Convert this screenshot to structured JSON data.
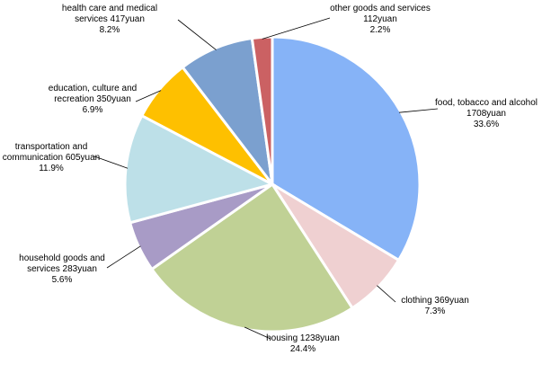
{
  "chart_data": {
    "type": "pie",
    "slices": [
      {
        "label": "food, tobacco and alcohol",
        "amount": "1708yuan",
        "value": 1708,
        "percent": "33.6%",
        "color": "#86b3f7"
      },
      {
        "label": "clothing",
        "amount": "369yuan",
        "value": 369,
        "percent": "7.3%",
        "color": "#efd0d1"
      },
      {
        "label": "housing",
        "amount": "1238yuan",
        "value": 1238,
        "percent": "24.4%",
        "color": "#c0d195"
      },
      {
        "label": "household goods and services",
        "amount": "283yuan",
        "value": 283,
        "percent": "5.6%",
        "color": "#a89bc6"
      },
      {
        "label": "transportation and communication",
        "amount": "605yuan",
        "value": 605,
        "percent": "11.9%",
        "color": "#bde0e8"
      },
      {
        "label": "education, culture and recreation",
        "amount": "350yuan",
        "value": 350,
        "percent": "6.9%",
        "color": "#fec000"
      },
      {
        "label": "health care and medical services",
        "amount": "417yuan",
        "value": 417,
        "percent": "8.2%",
        "color": "#7ba0cf"
      },
      {
        "label": "other goods and services",
        "amount": "112yuan",
        "value": 112,
        "percent": "2.2%",
        "color": "#cb6163"
      }
    ]
  }
}
